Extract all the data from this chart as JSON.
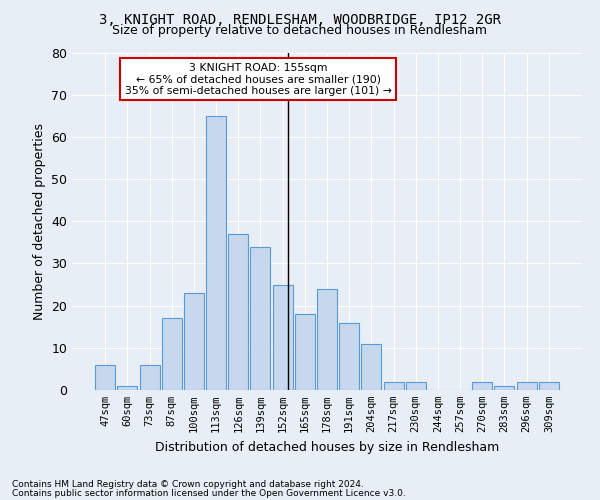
{
  "title1": "3, KNIGHT ROAD, RENDLESHAM, WOODBRIDGE, IP12 2GR",
  "title2": "Size of property relative to detached houses in Rendlesham",
  "xlabel": "Distribution of detached houses by size in Rendlesham",
  "ylabel": "Number of detached properties",
  "categories": [
    "47sqm",
    "60sqm",
    "73sqm",
    "87sqm",
    "100sqm",
    "113sqm",
    "126sqm",
    "139sqm",
    "152sqm",
    "165sqm",
    "178sqm",
    "191sqm",
    "204sqm",
    "217sqm",
    "230sqm",
    "244sqm",
    "257sqm",
    "270sqm",
    "283sqm",
    "296sqm",
    "309sqm"
  ],
  "values": [
    6,
    1,
    6,
    17,
    23,
    65,
    37,
    34,
    25,
    18,
    24,
    16,
    11,
    2,
    2,
    0,
    0,
    2,
    1,
    2,
    2
  ],
  "bar_color": "#c5d8ed",
  "bar_edge_color": "#5b9bd5",
  "cat_starts": [
    47,
    60,
    73,
    87,
    100,
    113,
    126,
    139,
    152,
    165,
    178,
    191,
    204,
    217,
    230,
    244,
    257,
    270,
    283,
    296,
    309
  ],
  "subject_val": 155,
  "subject_line_label": "3 KNIGHT ROAD: 155sqm",
  "annotation_line1": "← 65% of detached houses are smaller (190)",
  "annotation_line2": "35% of semi-detached houses are larger (101) →",
  "annotation_box_facecolor": "#ffffff",
  "annotation_box_edgecolor": "#cc0000",
  "ylim": [
    0,
    80
  ],
  "yticks": [
    0,
    10,
    20,
    30,
    40,
    50,
    60,
    70,
    80
  ],
  "footer1": "Contains HM Land Registry data © Crown copyright and database right 2024.",
  "footer2": "Contains public sector information licensed under the Open Government Licence v3.0.",
  "bg_color": "#e8eef5",
  "plot_bg_color": "#e8eef5"
}
